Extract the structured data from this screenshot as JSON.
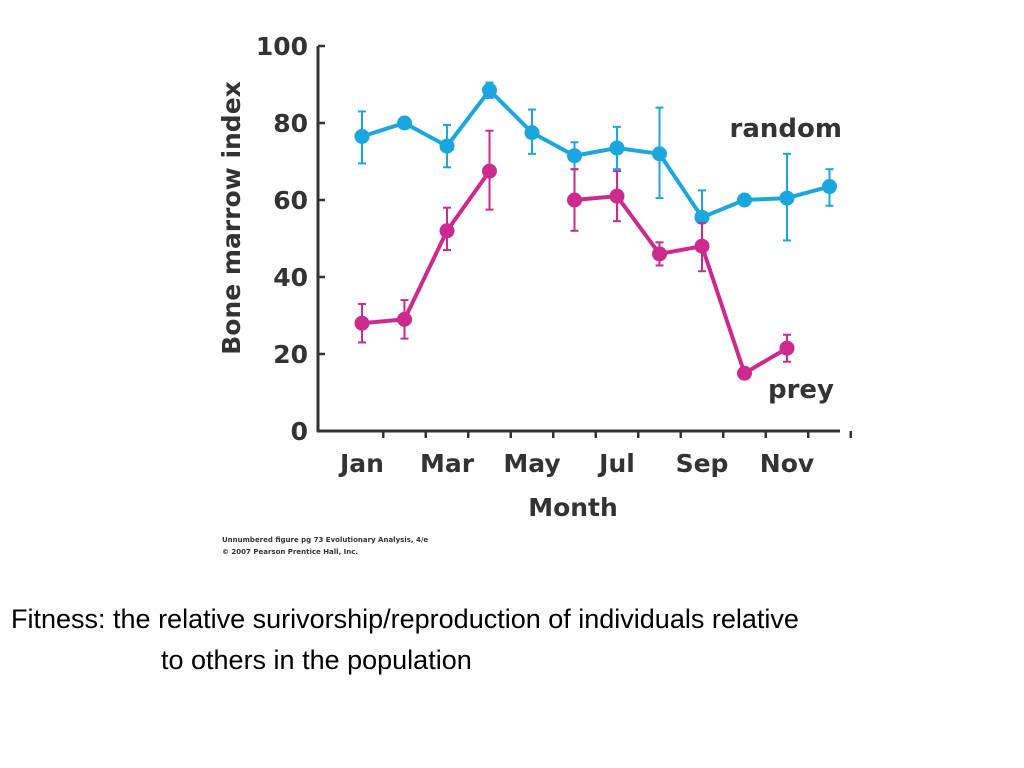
{
  "chart_data": {
    "type": "line",
    "ylabel": "Bone marrow index",
    "xlabel": "Month",
    "ylim": [
      0,
      100
    ],
    "yticks": [
      0,
      20,
      40,
      60,
      80,
      100
    ],
    "x_slots": 12,
    "x_tick_labels": [
      {
        "slot": 0,
        "label": "Jan"
      },
      {
        "slot": 2,
        "label": "Mar"
      },
      {
        "slot": 4,
        "label": "May"
      },
      {
        "slot": 6,
        "label": "Jul"
      },
      {
        "slot": 8,
        "label": "Sep"
      },
      {
        "slot": 10,
        "label": "Nov"
      }
    ],
    "series": [
      {
        "name": "random",
        "color": "#1aa7e0",
        "points": [
          {
            "slot": 0,
            "y": 76.5,
            "lo": 69.5,
            "hi": 83
          },
          {
            "slot": 1,
            "y": 80
          },
          {
            "slot": 2,
            "y": 74,
            "lo": 68.5,
            "hi": 79.5
          },
          {
            "slot": 3,
            "y": 88.5,
            "lo": 86.5,
            "hi": 90.5
          },
          {
            "slot": 4,
            "y": 77.5,
            "lo": 72,
            "hi": 83.5
          },
          {
            "slot": 5,
            "y": 71.5,
            "lo": 68,
            "hi": 75
          },
          {
            "slot": 6,
            "y": 73.5,
            "lo": 68,
            "hi": 79
          },
          {
            "slot": 7,
            "y": 72,
            "lo": 60.5,
            "hi": 84
          },
          {
            "slot": 8,
            "y": 55.5,
            "lo": 49,
            "hi": 62.5
          },
          {
            "slot": 9,
            "y": 60
          },
          {
            "slot": 10,
            "y": 60.5,
            "lo": 49.5,
            "hi": 72
          },
          {
            "slot": 11,
            "y": 63.5,
            "lo": 58.5,
            "hi": 68
          }
        ]
      },
      {
        "name": "prey",
        "color": "#cc2a8f",
        "segments": [
          [
            {
              "slot": 0,
              "y": 28,
              "lo": 23,
              "hi": 33
            },
            {
              "slot": 1,
              "y": 29,
              "lo": 24,
              "hi": 34
            },
            {
              "slot": 2,
              "y": 52,
              "lo": 47,
              "hi": 58
            },
            {
              "slot": 3,
              "y": 67.5,
              "lo": 57.5,
              "hi": 78
            }
          ],
          [
            {
              "slot": 5,
              "y": 60,
              "lo": 52,
              "hi": 68
            },
            {
              "slot": 6,
              "y": 61,
              "lo": 54.5,
              "hi": 67.5
            },
            {
              "slot": 7,
              "y": 46,
              "lo": 43,
              "hi": 49
            },
            {
              "slot": 8,
              "y": 48,
              "lo": 41.5,
              "hi": 54
            },
            {
              "slot": 9,
              "y": 15
            },
            {
              "slot": 10,
              "y": 21.5,
              "lo": 18,
              "hi": 25
            }
          ]
        ]
      }
    ]
  },
  "credit": {
    "line1": "Unnumbered figure pg 73  Evolutionary Analysis, 4/e",
    "line2": "© 2007 Pearson Prentice Hall, Inc."
  },
  "caption": {
    "line1": "Fitness: the relative surivorship/reproduction of individuals relative",
    "line2": "to others in the population"
  }
}
